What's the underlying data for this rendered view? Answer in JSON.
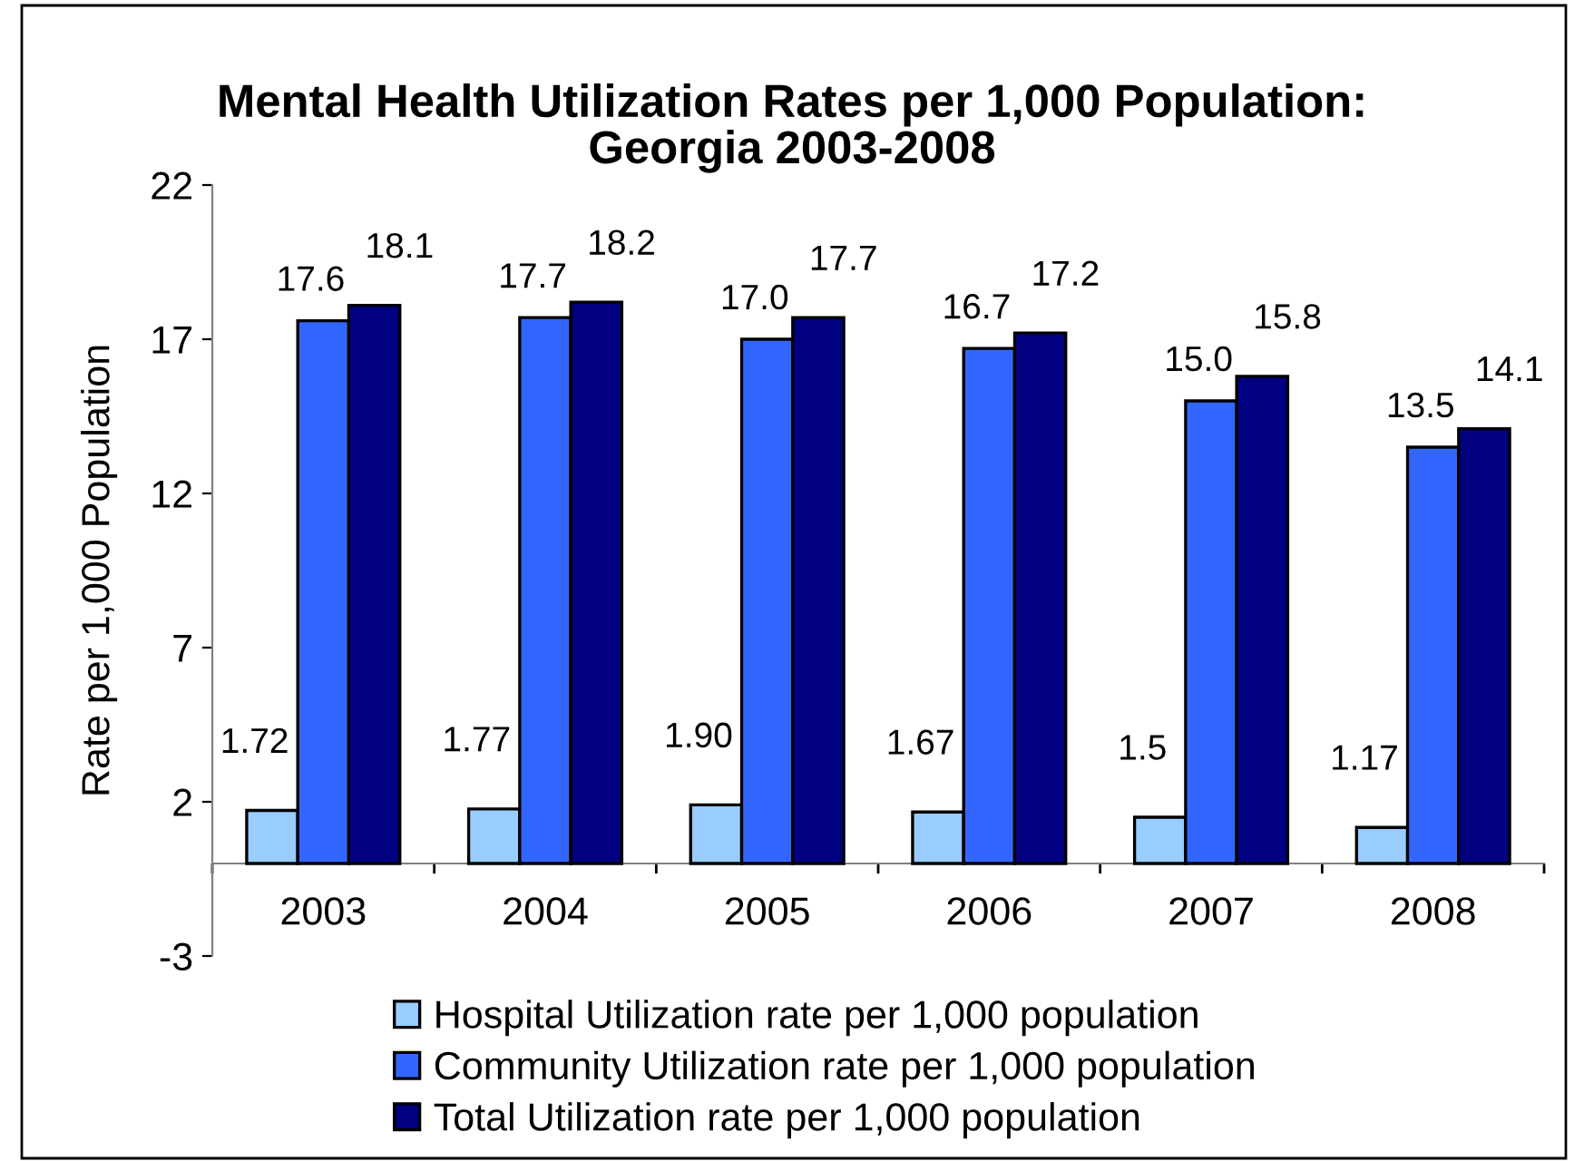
{
  "chart_data": {
    "type": "bar",
    "title": "Mental Health Utilization Rates per 1,000 Population:\nGeorgia 2003-2008",
    "ylabel": "Rate per 1,000 Population",
    "categories": [
      "2003",
      "2004",
      "2005",
      "2006",
      "2007",
      "2008"
    ],
    "series": [
      {
        "name": "Hospital Utilization rate per 1,000 population",
        "color": "#99ccff",
        "values": [
          1.72,
          1.77,
          1.9,
          1.67,
          1.5,
          1.17
        ],
        "value_labels": [
          "1.72",
          "1.77",
          "1.90",
          "1.67",
          "1.5",
          "1.17"
        ]
      },
      {
        "name": "Community Utilization rate per 1,000 population",
        "color": "#3366ff",
        "values": [
          17.6,
          17.7,
          17.0,
          16.7,
          15.0,
          13.5
        ],
        "value_labels": [
          "17.6",
          "17.7",
          "17.0",
          "16.7",
          "15.0",
          "13.5"
        ]
      },
      {
        "name": "Total Utilization rate per 1,000 population",
        "color": "#000080",
        "values": [
          18.1,
          18.2,
          17.7,
          17.2,
          15.8,
          14.1
        ],
        "value_labels": [
          "18.1",
          "18.2",
          "17.7",
          "17.2",
          "15.8",
          "14.1"
        ]
      }
    ],
    "ylim": [
      -3,
      22
    ],
    "yticks": [
      -3,
      2,
      7,
      12,
      17,
      22
    ],
    "legend": "bottom"
  }
}
